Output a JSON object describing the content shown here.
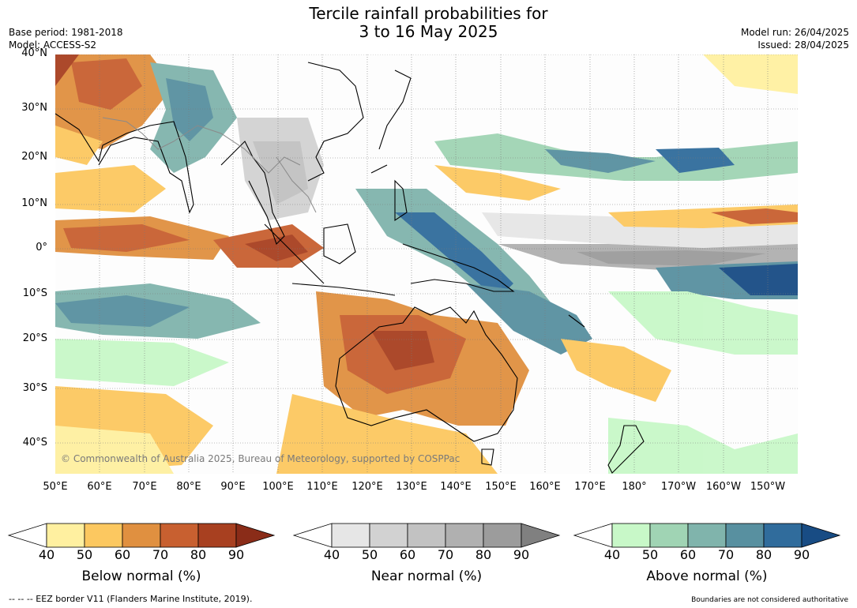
{
  "title_line1": "Tercile rainfall probabilities for",
  "title_line2": "3 to 16 May 2025",
  "meta_left": {
    "base_period": "Base period: 1981-2018",
    "model": "Model: ACCESS-S2"
  },
  "meta_right": {
    "model_run": "Model run: 26/04/2025",
    "issued": "Issued: 28/04/2025"
  },
  "lat_labels": [
    "40°N",
    "30°N",
    "20°N",
    "10°N",
    "0°",
    "10°S",
    "20°S",
    "30°S",
    "40°S"
  ],
  "lon_labels": [
    "50°E",
    "60°E",
    "70°E",
    "80°E",
    "90°E",
    "100°E",
    "110°E",
    "120°E",
    "130°E",
    "140°E",
    "150°E",
    "160°E",
    "170°E",
    "180°",
    "170°W",
    "160°W",
    "150°W"
  ],
  "copyright": "© Commonwealth of Australia 2025, Bureau of Meteorology, supported by COSPPac",
  "colorbars": [
    {
      "title": "Below normal (%)",
      "ticks": [
        "40",
        "50",
        "60",
        "70",
        "80",
        "90"
      ],
      "colors": [
        "#fff0a0",
        "#fcc860",
        "#e09040",
        "#c86030",
        "#a84020",
        "#8a2c18"
      ]
    },
    {
      "title": "Near normal (%)",
      "ticks": [
        "40",
        "50",
        "60",
        "70",
        "80",
        "90"
      ],
      "colors": [
        "#e6e6e6",
        "#d2d2d2",
        "#c2c2c2",
        "#b0b0b0",
        "#9c9c9c",
        "#808080"
      ]
    },
    {
      "title": "Above normal (%)",
      "ticks": [
        "40",
        "50",
        "60",
        "70",
        "80",
        "90"
      ],
      "colors": [
        "#c8f8c8",
        "#a0d4b4",
        "#80b4ac",
        "#5890a0",
        "#306c9c",
        "#184c84"
      ]
    }
  ],
  "eez_note": "--  --  -- EEZ border V11 (Flanders Marine Institute, 2019).",
  "boundaries_note": "Boundaries are not considered authoritative"
}
